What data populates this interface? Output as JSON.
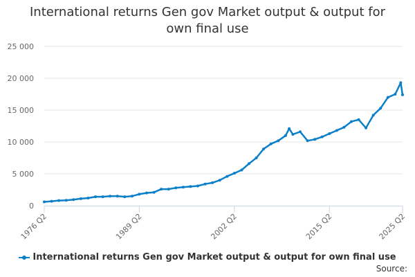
{
  "colors": {
    "series": "#0b7fc7",
    "grid": "#e6e6e6",
    "axis": "#ccd6eb",
    "text": "#666666"
  },
  "legend": {
    "position": "bottom"
  },
  "source_label": "Source:",
  "chart_data": {
    "type": "line",
    "title_line1": "International returns Gen gov Market output & output for",
    "title_line2": "own final use",
    "xlabel": "",
    "ylabel": "",
    "ylim": [
      0,
      25000
    ],
    "yticks": [
      0,
      5000,
      10000,
      15000,
      20000,
      25000
    ],
    "ytick_labels": [
      "0",
      "5 000",
      "10 000",
      "15 000",
      "20 000",
      "25 000"
    ],
    "xticks": [
      "1976 Q2",
      "1989 Q2",
      "2002 Q2",
      "2015 Q2",
      "2025 Q2"
    ],
    "grid": true,
    "series": [
      {
        "name": "International returns Gen gov Market output & output for own final use",
        "points": [
          [
            "1976 Q2",
            600
          ],
          [
            "1977 Q2",
            700
          ],
          [
            "1978 Q2",
            800
          ],
          [
            "1979 Q2",
            850
          ],
          [
            "1980 Q2",
            950
          ],
          [
            "1981 Q2",
            1100
          ],
          [
            "1982 Q2",
            1200
          ],
          [
            "1983 Q2",
            1400
          ],
          [
            "1984 Q2",
            1400
          ],
          [
            "1985 Q2",
            1500
          ],
          [
            "1986 Q2",
            1500
          ],
          [
            "1987 Q2",
            1400
          ],
          [
            "1988 Q2",
            1500
          ],
          [
            "1989 Q2",
            1800
          ],
          [
            "1990 Q2",
            2000
          ],
          [
            "1991 Q2",
            2100
          ],
          [
            "1992 Q2",
            2600
          ],
          [
            "1993 Q2",
            2600
          ],
          [
            "1994 Q2",
            2800
          ],
          [
            "1995 Q2",
            2900
          ],
          [
            "1996 Q2",
            3000
          ],
          [
            "1997 Q2",
            3100
          ],
          [
            "1998 Q2",
            3400
          ],
          [
            "1999 Q2",
            3600
          ],
          [
            "2000 Q2",
            4000
          ],
          [
            "2001 Q2",
            4600
          ],
          [
            "2002 Q2",
            5100
          ],
          [
            "2003 Q2",
            5600
          ],
          [
            "2004 Q2",
            6600
          ],
          [
            "2005 Q2",
            7500
          ],
          [
            "2006 Q2",
            8900
          ],
          [
            "2007 Q2",
            9700
          ],
          [
            "2008 Q2",
            10200
          ],
          [
            "2009 Q2",
            11000
          ],
          [
            "2009 Q4",
            12100
          ],
          [
            "2010 Q2",
            11200
          ],
          [
            "2011 Q2",
            11600
          ],
          [
            "2012 Q2",
            10200
          ],
          [
            "2013 Q2",
            10400
          ],
          [
            "2014 Q2",
            10800
          ],
          [
            "2015 Q2",
            11300
          ],
          [
            "2016 Q2",
            11800
          ],
          [
            "2017 Q2",
            12300
          ],
          [
            "2018 Q2",
            13200
          ],
          [
            "2019 Q2",
            13500
          ],
          [
            "2020 Q2",
            12200
          ],
          [
            "2021 Q2",
            14200
          ],
          [
            "2022 Q2",
            15300
          ],
          [
            "2023 Q2",
            17000
          ],
          [
            "2024 Q2",
            17500
          ],
          [
            "2025 Q1",
            19300
          ],
          [
            "2025 Q2",
            17400
          ]
        ]
      }
    ]
  }
}
